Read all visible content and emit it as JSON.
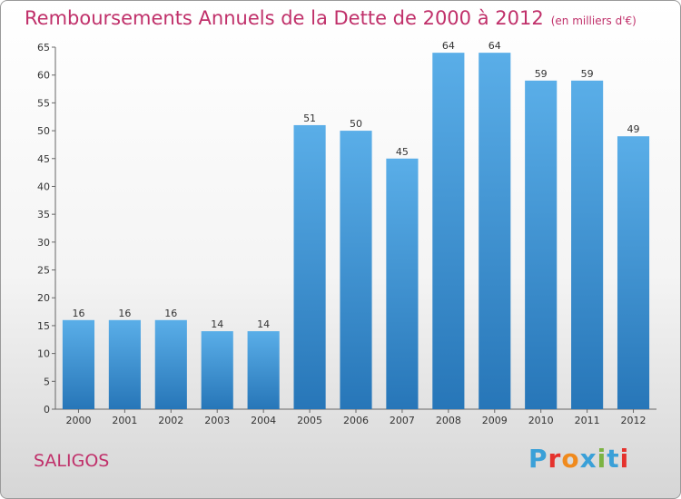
{
  "title": "Remboursements Annuels de la Dette de 2000 à 2012",
  "unit": "(en milliers d'€)",
  "commune": "SALIGOS",
  "logo": {
    "letters": [
      "P",
      "r",
      "o",
      "x",
      "i",
      "t",
      "i"
    ],
    "colors": [
      "#3aa0d8",
      "#e5322d",
      "#f08a1d",
      "#3aa0d8",
      "#7cb342",
      "#3aa0d8",
      "#e5322d"
    ]
  },
  "colors": {
    "title": "#c0306a",
    "bar_top": "#5aaee8",
    "bar_bottom": "#2776b8"
  },
  "chart_data": {
    "type": "bar",
    "categories": [
      "2000",
      "2001",
      "2002",
      "2003",
      "2004",
      "2005",
      "2006",
      "2007",
      "2008",
      "2009",
      "2010",
      "2011",
      "2012"
    ],
    "values": [
      16,
      16,
      16,
      14,
      14,
      51,
      50,
      45,
      64,
      64,
      59,
      59,
      49
    ],
    "ylim": [
      0,
      65
    ],
    "yticks": [
      0,
      5,
      10,
      15,
      20,
      25,
      30,
      35,
      40,
      45,
      50,
      55,
      60,
      65
    ],
    "grid": false
  }
}
